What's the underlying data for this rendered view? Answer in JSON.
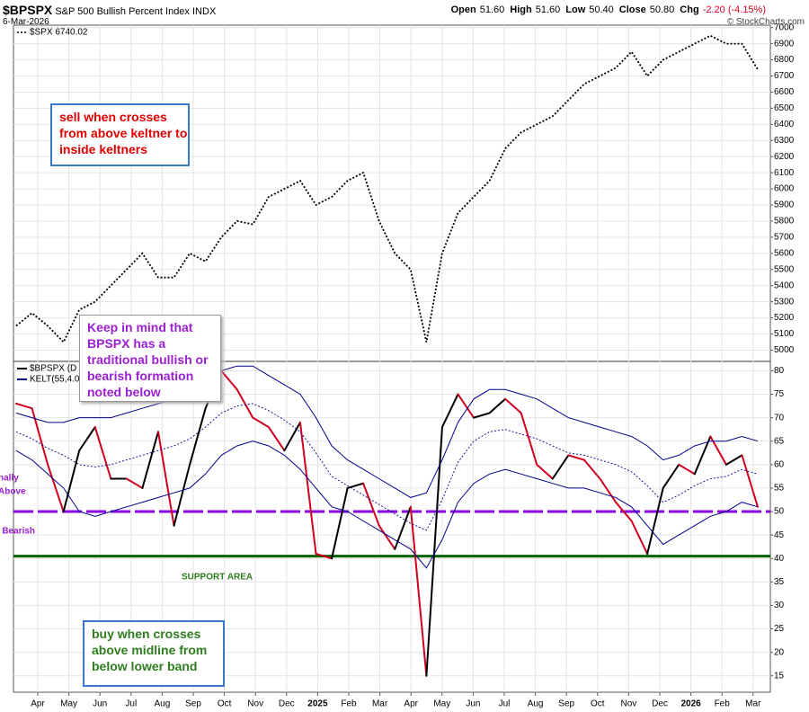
{
  "header": {
    "symbol": "$BPSPX",
    "name": "S&P 500 Bullish Percent Index",
    "exchange": "INDX",
    "date": "6-Mar-2026",
    "quote": [
      {
        "label": "Open",
        "value": "51.60"
      },
      {
        "label": "High",
        "value": "51.60"
      },
      {
        "label": "Low",
        "value": "50.40"
      },
      {
        "label": "Close",
        "value": "50.80"
      },
      {
        "label": "Chg",
        "value": "-2.20 (-4.15%)"
      }
    ],
    "copyright": "© StockCharts.com"
  },
  "chart_data": [
    {
      "type": "line",
      "grid": true,
      "series": [
        {
          "name": "$SPX 6740.02",
          "color": "#000000",
          "style": "dotted",
          "values": [
            5150,
            5230,
            5150,
            5050,
            5250,
            5300,
            5400,
            5500,
            5600,
            5450,
            5450,
            5600,
            5550,
            5700,
            5800,
            5780,
            5950,
            6000,
            6050,
            5900,
            5950,
            6050,
            6100,
            5800,
            5600,
            5500,
            5050,
            5600,
            5850,
            5950,
            6050,
            6250,
            6350,
            6400,
            6450,
            6550,
            6650,
            6700,
            6750,
            6850,
            6700,
            6800,
            6850,
            6900,
            6950,
            6900,
            6900,
            6740
          ]
        }
      ],
      "ylim": [
        4930,
        7015
      ],
      "yticks": [
        5000,
        5100,
        5200,
        5300,
        5400,
        5500,
        5600,
        5700,
        5800,
        5900,
        6000,
        6100,
        6200,
        6300,
        6400,
        6500,
        6600,
        6700,
        6800,
        6900,
        7000
      ]
    },
    {
      "type": "line",
      "grid": true,
      "xlabels": [
        "Apr",
        "May",
        "Jun",
        "Jul",
        "Aug",
        "Sep",
        "Oct",
        "Nov",
        "Dec",
        "2025",
        "Feb",
        "Mar",
        "Apr",
        "May",
        "Jun",
        "Jul",
        "Aug",
        "Sep",
        "Oct",
        "Nov",
        "Dec",
        "2026",
        "Feb",
        "Mar"
      ],
      "series": [
        {
          "name": "$BPSPX (D",
          "color": "#000000",
          "down_color": "#d1001f",
          "style": "updown",
          "values": [
            73,
            72,
            60,
            50,
            63,
            68,
            57,
            57,
            55,
            67,
            47,
            60,
            72,
            80,
            76,
            70,
            68,
            63,
            69,
            41,
            40,
            55,
            56,
            47,
            42,
            51,
            15,
            68,
            75,
            70,
            71,
            74,
            71,
            60,
            57,
            62,
            61,
            57,
            52,
            48,
            41,
            55,
            60,
            58,
            66,
            60,
            62,
            51
          ]
        },
        {
          "name": "KELT(55,4.0,1",
          "color": "#00008b",
          "style": "solid",
          "values": [
            71,
            70,
            69,
            69,
            70,
            70,
            70,
            71,
            72,
            73,
            74,
            76,
            78,
            80,
            81,
            81,
            79,
            77,
            75,
            70,
            64,
            61,
            59,
            57,
            55,
            53,
            54,
            61,
            69,
            74,
            76,
            76,
            75,
            74,
            72,
            70,
            69,
            68,
            67,
            66,
            64,
            61,
            62,
            64,
            65,
            65,
            66,
            65
          ]
        },
        {
          "color": "#00008b",
          "style": "dotted",
          "values": [
            67,
            65.5,
            63.5,
            62,
            60,
            59.5,
            60,
            61,
            62,
            63,
            64,
            65.5,
            68,
            71,
            72.5,
            73,
            71.5,
            69.5,
            67,
            62.5,
            57.5,
            55.5,
            53.5,
            51.5,
            49.5,
            47.5,
            46,
            52.5,
            60.5,
            65,
            67,
            67.5,
            66.5,
            65.5,
            64,
            62.5,
            62,
            61,
            60,
            58.5,
            55.5,
            52,
            53.5,
            55.5,
            57,
            57.5,
            59,
            58
          ]
        },
        {
          "color": "#00008b",
          "style": "solid",
          "values": [
            63,
            61,
            58,
            55,
            50,
            49,
            50,
            51,
            52,
            53,
            54,
            55,
            58,
            62,
            64,
            65,
            64,
            62,
            59,
            55,
            51,
            50,
            48,
            46,
            44,
            42,
            38,
            44,
            52,
            56,
            58,
            59,
            58,
            57,
            56,
            55,
            55,
            54,
            53,
            51,
            47,
            43,
            45,
            47,
            49,
            50,
            52,
            51
          ]
        }
      ],
      "hlines": [
        {
          "value": 50,
          "color": "#8a00e6",
          "dashed": true
        },
        {
          "value": 40.5,
          "color": "#006400",
          "dashed": false
        }
      ],
      "ylim": [
        11.5,
        82
      ],
      "yticks": [
        15,
        20,
        25,
        30,
        35,
        40,
        45,
        50,
        55,
        60,
        65,
        70,
        75,
        80
      ],
      "side_texts": [
        "nally",
        "Above",
        "y Bearish"
      ],
      "support_text": "SUPPORT AREA"
    }
  ],
  "annotations": [
    {
      "lines": [
        "sell when crosses",
        "from above keltner to",
        "inside keltners"
      ],
      "color": "#e00000",
      "border": "#3a78c8"
    },
    {
      "lines": [
        "Keep in mind that",
        "BPSPX has a",
        "traditional bullish or",
        "bearish formation",
        "noted below"
      ],
      "color": "#9b1fd1",
      "border": "#999999"
    },
    {
      "lines": [
        "buy when crosses",
        "above midline from",
        "below lower band"
      ],
      "color": "#2e7d1e",
      "border": "#3a78c8"
    }
  ]
}
